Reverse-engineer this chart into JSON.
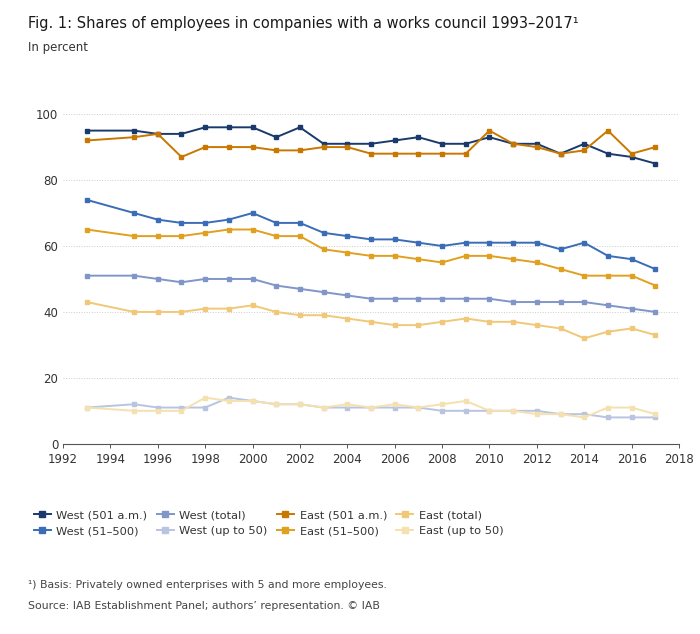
{
  "title": "Fig. 1: Shares of employees in companies with a works council 1993–2017¹",
  "subtitle": "In percent",
  "footnote": "¹) Basis: Privately owned enterprises with 5 and more employees.",
  "source": "Source: IAB Establishment Panel; authors’ representation. © IAB",
  "xlim": [
    1992,
    2018
  ],
  "ylim": [
    0,
    100
  ],
  "yticks": [
    0,
    20,
    40,
    60,
    80,
    100
  ],
  "xticks": [
    1992,
    1994,
    1996,
    1998,
    2000,
    2002,
    2004,
    2006,
    2008,
    2010,
    2012,
    2014,
    2016,
    2018
  ],
  "series": {
    "west_501am": {
      "label": "West (501 a.m.)",
      "color": "#1a3a6b",
      "years": [
        1993,
        1995,
        1996,
        1997,
        1998,
        1999,
        2000,
        2001,
        2002,
        2003,
        2004,
        2005,
        2006,
        2007,
        2008,
        2009,
        2010,
        2011,
        2012,
        2013,
        2014,
        2015,
        2016,
        2017
      ],
      "values": [
        95,
        95,
        94,
        94,
        96,
        96,
        96,
        93,
        96,
        91,
        91,
        91,
        92,
        93,
        91,
        91,
        93,
        91,
        91,
        88,
        91,
        88,
        87,
        85
      ]
    },
    "west_51_500": {
      "label": "West (51–500)",
      "color": "#3a6db5",
      "years": [
        1993,
        1995,
        1996,
        1997,
        1998,
        1999,
        2000,
        2001,
        2002,
        2003,
        2004,
        2005,
        2006,
        2007,
        2008,
        2009,
        2010,
        2011,
        2012,
        2013,
        2014,
        2015,
        2016,
        2017
      ],
      "values": [
        74,
        70,
        68,
        67,
        67,
        68,
        70,
        67,
        67,
        64,
        63,
        62,
        62,
        61,
        60,
        61,
        61,
        61,
        61,
        59,
        61,
        57,
        56,
        53
      ]
    },
    "west_total": {
      "label": "West (total)",
      "color": "#8096c8",
      "years": [
        1993,
        1995,
        1996,
        1997,
        1998,
        1999,
        2000,
        2001,
        2002,
        2003,
        2004,
        2005,
        2006,
        2007,
        2008,
        2009,
        2010,
        2011,
        2012,
        2013,
        2014,
        2015,
        2016,
        2017
      ],
      "values": [
        51,
        51,
        50,
        49,
        50,
        50,
        50,
        48,
        47,
        46,
        45,
        44,
        44,
        44,
        44,
        44,
        44,
        43,
        43,
        43,
        43,
        42,
        41,
        40
      ]
    },
    "west_up50": {
      "label": "West (up to 50)",
      "color": "#b8c4e0",
      "years": [
        1993,
        1995,
        1996,
        1997,
        1998,
        1999,
        2000,
        2001,
        2002,
        2003,
        2004,
        2005,
        2006,
        2007,
        2008,
        2009,
        2010,
        2011,
        2012,
        2013,
        2014,
        2015,
        2016,
        2017
      ],
      "values": [
        11,
        12,
        11,
        11,
        11,
        14,
        13,
        12,
        12,
        11,
        11,
        11,
        11,
        11,
        10,
        10,
        10,
        10,
        10,
        9,
        9,
        8,
        8,
        8
      ]
    },
    "east_501am": {
      "label": "East (501 a.m.)",
      "color": "#c87800",
      "years": [
        1993,
        1995,
        1996,
        1997,
        1998,
        1999,
        2000,
        2001,
        2002,
        2003,
        2004,
        2005,
        2006,
        2007,
        2008,
        2009,
        2010,
        2011,
        2012,
        2013,
        2014,
        2015,
        2016,
        2017
      ],
      "values": [
        92,
        93,
        94,
        87,
        90,
        90,
        90,
        89,
        89,
        90,
        90,
        88,
        88,
        88,
        88,
        88,
        95,
        91,
        90,
        88,
        89,
        95,
        88,
        90
      ]
    },
    "east_51_500": {
      "label": "East (51–500)",
      "color": "#e0a020",
      "years": [
        1993,
        1995,
        1996,
        1997,
        1998,
        1999,
        2000,
        2001,
        2002,
        2003,
        2004,
        2005,
        2006,
        2007,
        2008,
        2009,
        2010,
        2011,
        2012,
        2013,
        2014,
        2015,
        2016,
        2017
      ],
      "values": [
        65,
        63,
        63,
        63,
        64,
        65,
        65,
        63,
        63,
        59,
        58,
        57,
        57,
        56,
        55,
        57,
        57,
        56,
        55,
        53,
        51,
        51,
        51,
        48
      ]
    },
    "east_total": {
      "label": "East (total)",
      "color": "#f0c878",
      "years": [
        1993,
        1995,
        1996,
        1997,
        1998,
        1999,
        2000,
        2001,
        2002,
        2003,
        2004,
        2005,
        2006,
        2007,
        2008,
        2009,
        2010,
        2011,
        2012,
        2013,
        2014,
        2015,
        2016,
        2017
      ],
      "values": [
        43,
        40,
        40,
        40,
        41,
        41,
        42,
        40,
        39,
        39,
        38,
        37,
        36,
        36,
        37,
        38,
        37,
        37,
        36,
        35,
        32,
        34,
        35,
        33
      ]
    },
    "east_up50": {
      "label": "East (up to 50)",
      "color": "#f5e0b0",
      "years": [
        1993,
        1995,
        1996,
        1997,
        1998,
        1999,
        2000,
        2001,
        2002,
        2003,
        2004,
        2005,
        2006,
        2007,
        2008,
        2009,
        2010,
        2011,
        2012,
        2013,
        2014,
        2015,
        2016,
        2017
      ],
      "values": [
        11,
        10,
        10,
        10,
        14,
        13,
        13,
        12,
        12,
        11,
        12,
        11,
        12,
        11,
        12,
        13,
        10,
        10,
        9,
        9,
        8,
        11,
        11,
        9
      ]
    }
  },
  "legend_order": [
    "west_501am",
    "west_51_500",
    "west_total",
    "west_up50",
    "east_501am",
    "east_51_500",
    "east_total",
    "east_up50"
  ],
  "background_color": "#ffffff",
  "grid_color": "#cccccc",
  "marker": "s",
  "markersize": 3.5,
  "linewidth": 1.4
}
